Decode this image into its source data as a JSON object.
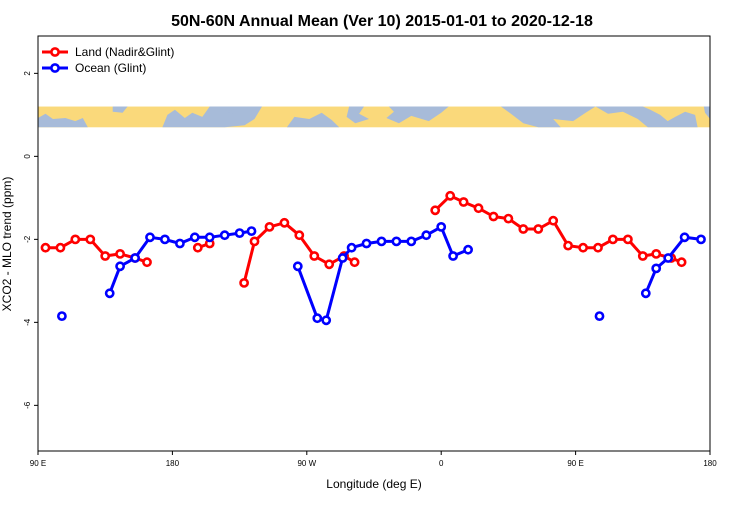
{
  "chart_data": {
    "type": "line",
    "title": "50N-60N Annual Mean (Ver 10)   2015-01-01 to 2020-12-18",
    "xlabel": "Longitude (deg E)",
    "ylabel": "XCO2 - MLO trend (ppm)",
    "xlim": [
      90,
      540
    ],
    "ylim": [
      -7.1,
      2.9
    ],
    "x_ticks": [
      {
        "value": 90,
        "label": "90 E"
      },
      {
        "value": 180,
        "label": "180"
      },
      {
        "value": 270,
        "label": "90 W"
      },
      {
        "value": 360,
        "label": "0"
      },
      {
        "value": 450,
        "label": "90 E"
      },
      {
        "value": 540,
        "label": "180"
      }
    ],
    "y_ticks": [
      {
        "value": 2,
        "label": "2"
      },
      {
        "value": 0,
        "label": "0"
      },
      {
        "value": -2,
        "label": "-2"
      },
      {
        "value": -4,
        "label": "-4"
      },
      {
        "value": -6,
        "label": "-6"
      }
    ],
    "legend_position": "top-left",
    "map_strip": {
      "y_top": 1.2,
      "y_bottom": 0.7,
      "ocean_color": "#a7bbd9",
      "land_color": "#fad97b"
    },
    "series": [
      {
        "name": "Land (Nadir&Glint)",
        "color": "#ff0000",
        "segments": [
          [
            [
              95,
              -2.2
            ],
            [
              105,
              -2.2
            ],
            [
              115,
              -2.0
            ],
            [
              125,
              -2.0
            ],
            [
              135,
              -2.4
            ],
            [
              145,
              -2.35
            ],
            [
              155,
              -2.45
            ],
            [
              163,
              -2.55
            ]
          ],
          [
            [
              197,
              -2.2
            ],
            [
              205,
              -2.1
            ]
          ],
          [
            [
              228,
              -3.05
            ],
            [
              235,
              -2.05
            ],
            [
              245,
              -1.7
            ],
            [
              255,
              -1.6
            ],
            [
              265,
              -1.9
            ],
            [
              275,
              -2.4
            ],
            [
              285,
              -2.6
            ],
            [
              295,
              -2.4
            ],
            [
              302,
              -2.55
            ]
          ],
          [
            [
              356,
              -1.3
            ],
            [
              366,
              -0.95
            ],
            [
              375,
              -1.1
            ],
            [
              385,
              -1.25
            ],
            [
              395,
              -1.45
            ],
            [
              405,
              -1.5
            ],
            [
              415,
              -1.75
            ],
            [
              425,
              -1.75
            ],
            [
              435,
              -1.55
            ],
            [
              445,
              -2.15
            ],
            [
              455,
              -2.2
            ],
            [
              465,
              -2.2
            ],
            [
              475,
              -2.0
            ],
            [
              485,
              -2.0
            ],
            [
              495,
              -2.4
            ],
            [
              504,
              -2.35
            ],
            [
              514,
              -2.45
            ],
            [
              521,
              -2.55
            ]
          ]
        ]
      },
      {
        "name": "Ocean (Glint)",
        "color": "#0000ff",
        "segments": [
          [
            [
              106,
              -3.85
            ]
          ],
          [
            [
              138,
              -3.3
            ],
            [
              145,
              -2.65
            ],
            [
              155,
              -2.45
            ],
            [
              165,
              -1.95
            ],
            [
              175,
              -2.0
            ],
            [
              185,
              -2.1
            ],
            [
              195,
              -1.95
            ],
            [
              205,
              -1.95
            ],
            [
              215,
              -1.9
            ],
            [
              225,
              -1.85
            ],
            [
              233,
              -1.8
            ]
          ],
          [
            [
              264,
              -2.65
            ],
            [
              277,
              -3.9
            ],
            [
              283,
              -3.95
            ],
            [
              294,
              -2.45
            ],
            [
              300,
              -2.2
            ],
            [
              310,
              -2.1
            ],
            [
              320,
              -2.05
            ],
            [
              330,
              -2.05
            ],
            [
              340,
              -2.05
            ],
            [
              350,
              -1.9
            ],
            [
              360,
              -1.7
            ],
            [
              368,
              -2.4
            ],
            [
              378,
              -2.25
            ]
          ],
          [
            [
              466,
              -3.85
            ]
          ],
          [
            [
              497,
              -3.3
            ],
            [
              504,
              -2.7
            ],
            [
              512,
              -2.45
            ],
            [
              523,
              -1.95
            ],
            [
              534,
              -2.0
            ]
          ]
        ]
      }
    ]
  }
}
